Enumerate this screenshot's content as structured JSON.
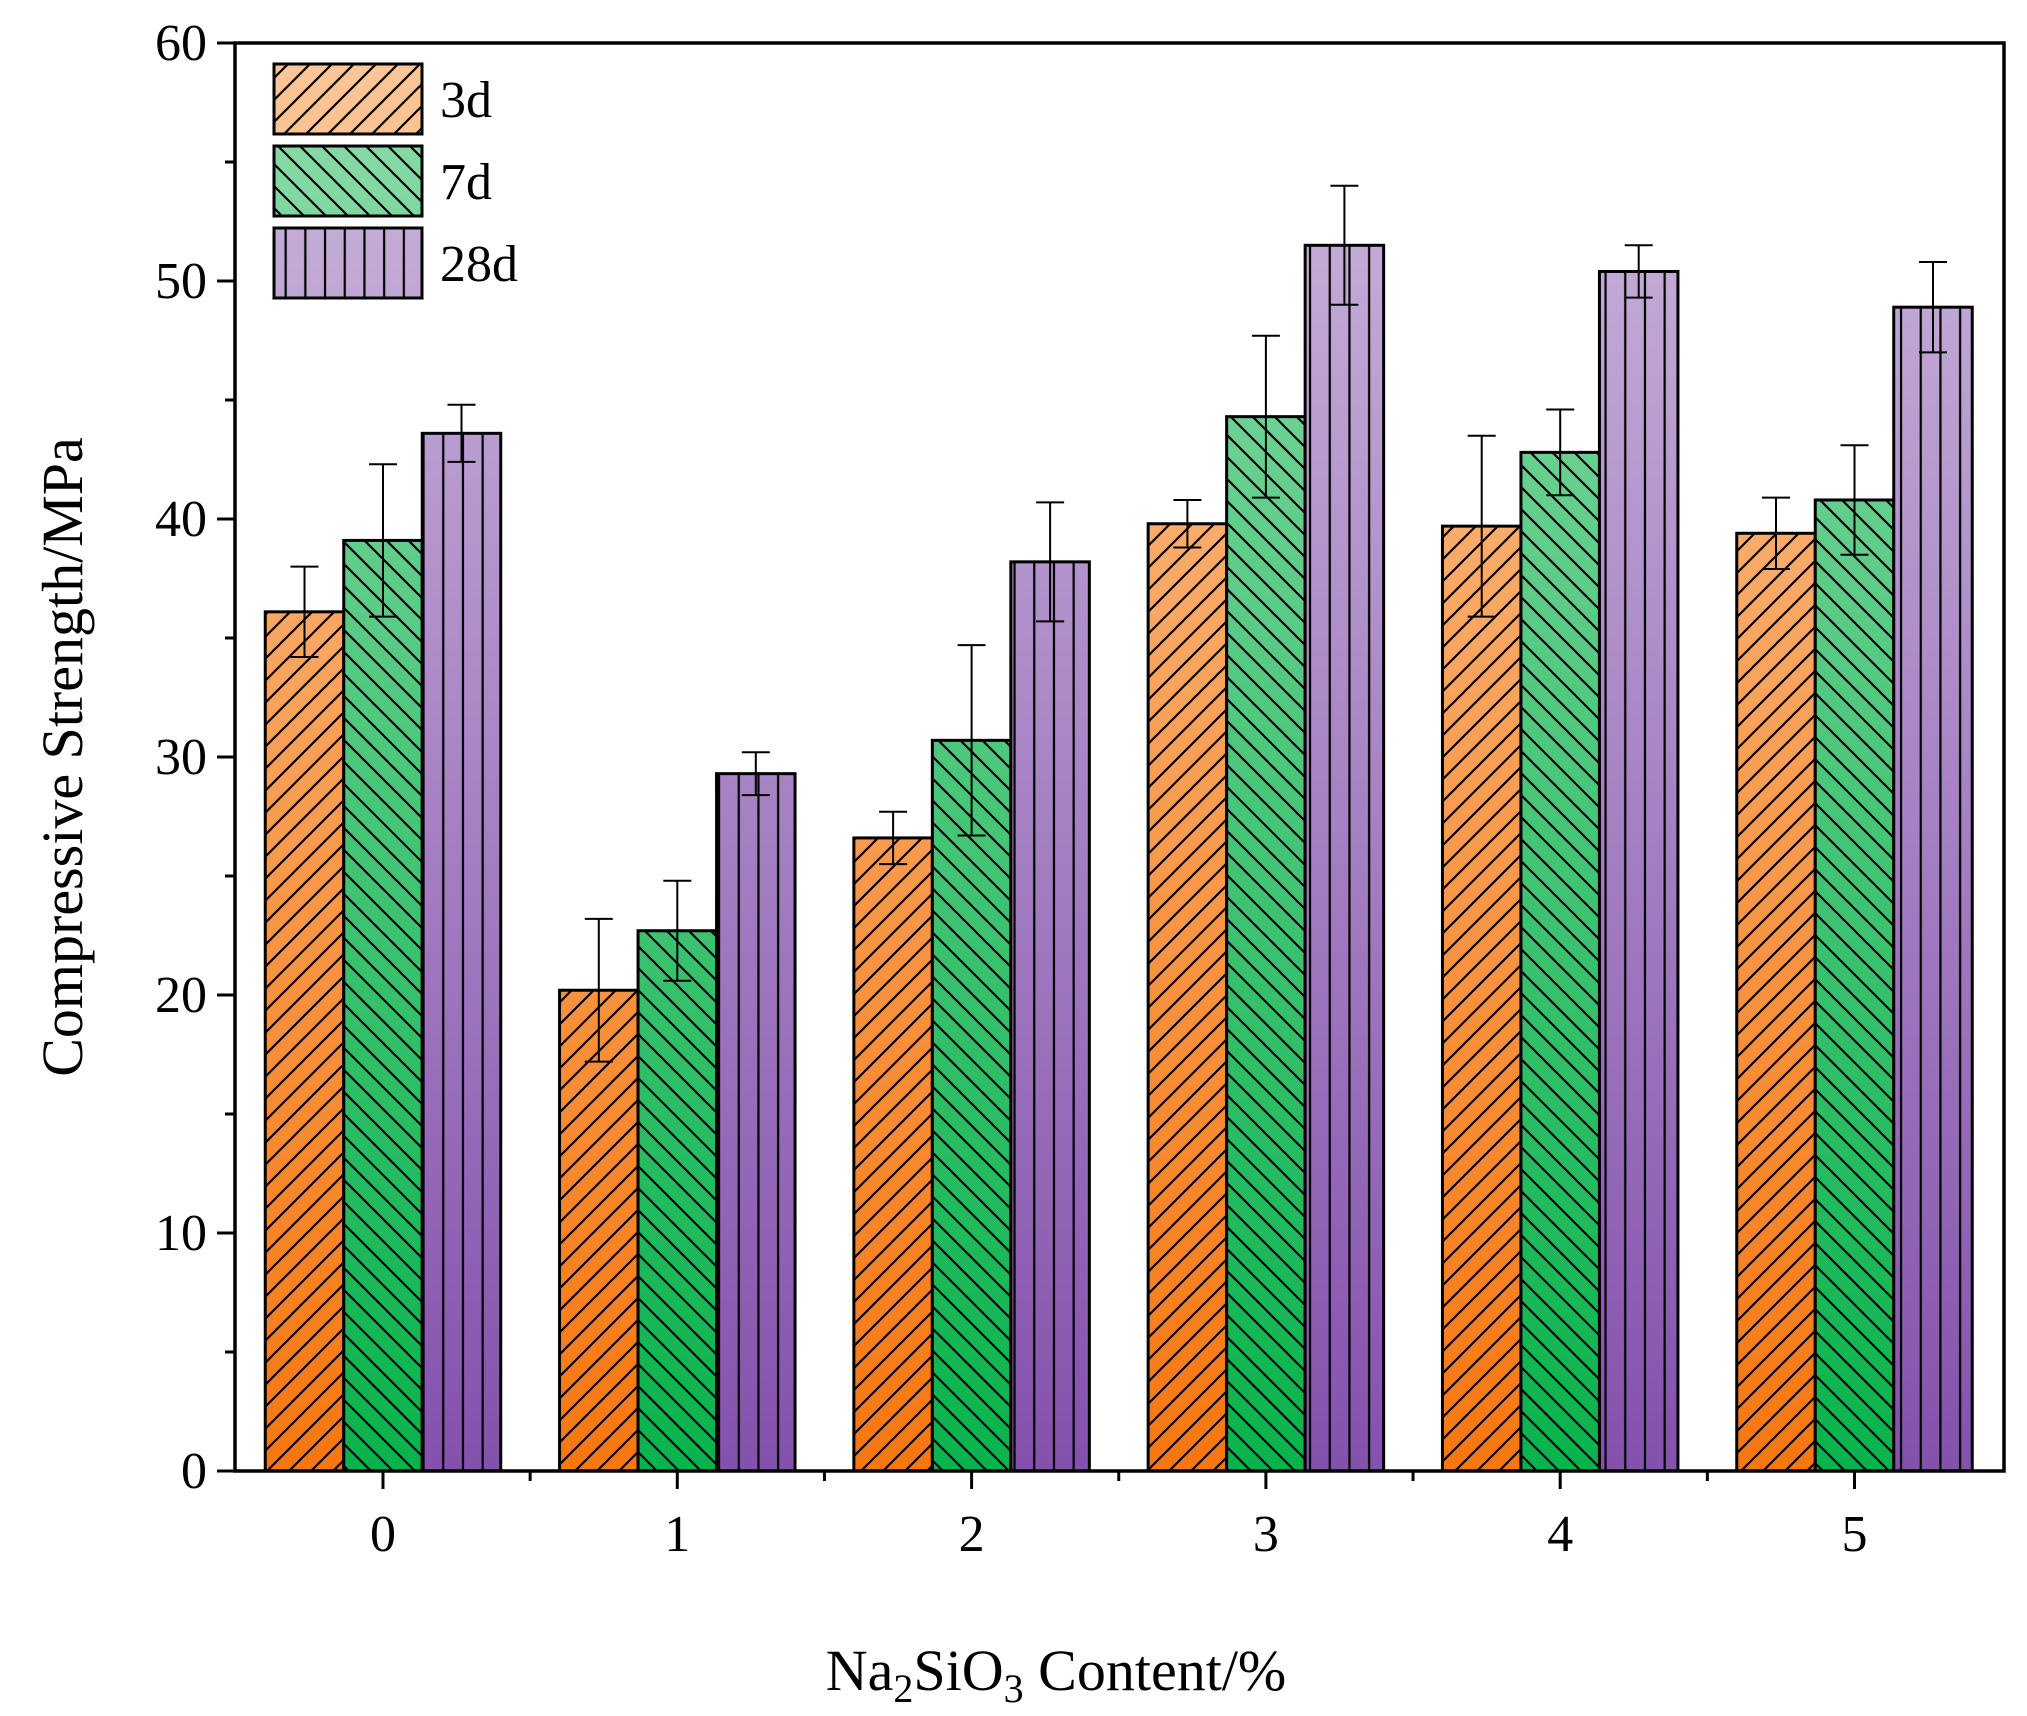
{
  "chart_data": {
    "type": "bar",
    "categories": [
      "0",
      "1",
      "2",
      "3",
      "4",
      "5"
    ],
    "series": [
      {
        "name": "3d",
        "values": [
          36.1,
          20.2,
          26.6,
          39.8,
          39.7,
          39.4
        ],
        "errors": [
          1.9,
          3.0,
          1.1,
          1.0,
          3.8,
          1.5
        ]
      },
      {
        "name": "7d",
        "values": [
          39.1,
          22.7,
          30.7,
          44.3,
          42.8,
          40.8
        ],
        "errors": [
          3.2,
          2.1,
          4.0,
          3.4,
          1.8,
          2.3
        ]
      },
      {
        "name": "28d",
        "values": [
          43.6,
          29.3,
          38.2,
          51.5,
          50.4,
          48.9
        ],
        "errors": [
          1.2,
          0.9,
          2.5,
          2.5,
          1.1,
          1.9
        ]
      }
    ],
    "xlabel_main": "Na",
    "xlabel_sub1": "2",
    "xlabel_mid": "SiO",
    "xlabel_sub2": "3",
    "xlabel_tail": " Content/%",
    "ylabel": "Compressive Strength/MPa",
    "ylim": [
      0,
      60
    ],
    "yticks": [
      "0",
      "10",
      "20",
      "30",
      "40",
      "50",
      "60"
    ],
    "legend_position": "top-left",
    "grid": false,
    "colors": {
      "3d": {
        "top": "#fbc79a",
        "bottom": "#f7770f"
      },
      "7d": {
        "top": "#8fdcab",
        "bottom": "#0ab24c"
      },
      "28d": {
        "top": "#cdb9dd",
        "bottom": "#8451ad"
      }
    }
  }
}
